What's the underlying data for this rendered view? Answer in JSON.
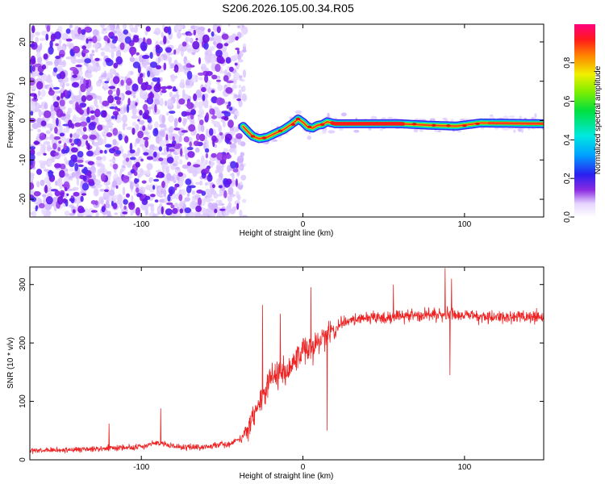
{
  "title": "S206.2026.105.00.34.R05",
  "chart_data": [
    {
      "type": "heatmap",
      "name": "spectrogram",
      "xlabel": "Height of straight line (km)",
      "ylabel": "Frequency (Hz)",
      "xlim": [
        -169,
        149
      ],
      "ylim": [
        -24.5,
        24.5
      ],
      "x_ticks": [
        -100,
        0,
        100
      ],
      "y_ticks": [
        -20,
        -10,
        0,
        10,
        20
      ],
      "ridge_center_points": [
        [
          -37,
          -1.5
        ],
        [
          -34,
          -2.8
        ],
        [
          -31,
          -4.0
        ],
        [
          -27,
          -4.6
        ],
        [
          -22,
          -4.2
        ],
        [
          -17,
          -3.2
        ],
        [
          -12,
          -2.3
        ],
        [
          -8,
          -1.2
        ],
        [
          -5,
          -0.3
        ],
        [
          -3,
          0.4
        ],
        [
          0,
          -0.4
        ],
        [
          3,
          -1.6
        ],
        [
          6,
          -1.9
        ],
        [
          9,
          -1.2
        ],
        [
          12,
          -1.0
        ],
        [
          15,
          -0.3
        ],
        [
          20,
          -0.8
        ],
        [
          60,
          -0.8
        ],
        [
          80,
          -1.2
        ],
        [
          95,
          -1.4
        ],
        [
          110,
          -0.6
        ],
        [
          149,
          -0.8
        ]
      ],
      "colorbar": {
        "label": "Normalized spectral amplitude",
        "range": [
          0,
          1
        ],
        "ticks": [
          0.0,
          0.2,
          0.4,
          0.6,
          0.8
        ],
        "tick_labels": [
          "0.0",
          "0.2",
          "0.4",
          "0.6",
          "0.8"
        ],
        "colormap": "rainbow (white, violet, blue, cyan, green, yellow, red, magenta)"
      }
    },
    {
      "type": "line",
      "name": "snr",
      "xlabel": "Height of straight line (km)",
      "ylabel": "SNR (10 * v/v)",
      "xlim": [
        -169,
        149
      ],
      "ylim": [
        0,
        330
      ],
      "x_ticks": [
        -100,
        0,
        100
      ],
      "y_ticks": [
        0,
        100,
        200,
        300
      ],
      "line_color": "#ee2222",
      "trend": [
        [
          -169,
          15
        ],
        [
          -140,
          17
        ],
        [
          -120,
          20
        ],
        [
          -100,
          22
        ],
        [
          -90,
          30
        ],
        [
          -80,
          22
        ],
        [
          -60,
          22
        ],
        [
          -45,
          28
        ],
        [
          -38,
          38
        ],
        [
          -33,
          55
        ],
        [
          -28,
          90
        ],
        [
          -24,
          120
        ],
        [
          -18,
          145
        ],
        [
          -10,
          150
        ],
        [
          -5,
          165
        ],
        [
          0,
          180
        ],
        [
          5,
          195
        ],
        [
          10,
          205
        ],
        [
          15,
          215
        ],
        [
          20,
          225
        ],
        [
          25,
          235
        ],
        [
          30,
          240
        ],
        [
          40,
          242
        ],
        [
          60,
          245
        ],
        [
          80,
          248
        ],
        [
          90,
          250
        ],
        [
          100,
          248
        ],
        [
          120,
          244
        ],
        [
          149,
          245
        ]
      ],
      "noise_amplitude": [
        [
          -169,
          5
        ],
        [
          -40,
          6
        ],
        [
          -30,
          25
        ],
        [
          -10,
          28
        ],
        [
          15,
          24
        ],
        [
          25,
          12
        ],
        [
          149,
          13
        ]
      ],
      "spikes": [
        [
          -120,
          62
        ],
        [
          -88,
          88
        ],
        [
          -25,
          265
        ],
        [
          -14,
          250
        ],
        [
          5,
          295
        ],
        [
          15,
          50
        ],
        [
          88,
          328
        ],
        [
          92,
          310
        ],
        [
          91,
          145
        ],
        [
          56,
          300
        ]
      ]
    }
  ]
}
